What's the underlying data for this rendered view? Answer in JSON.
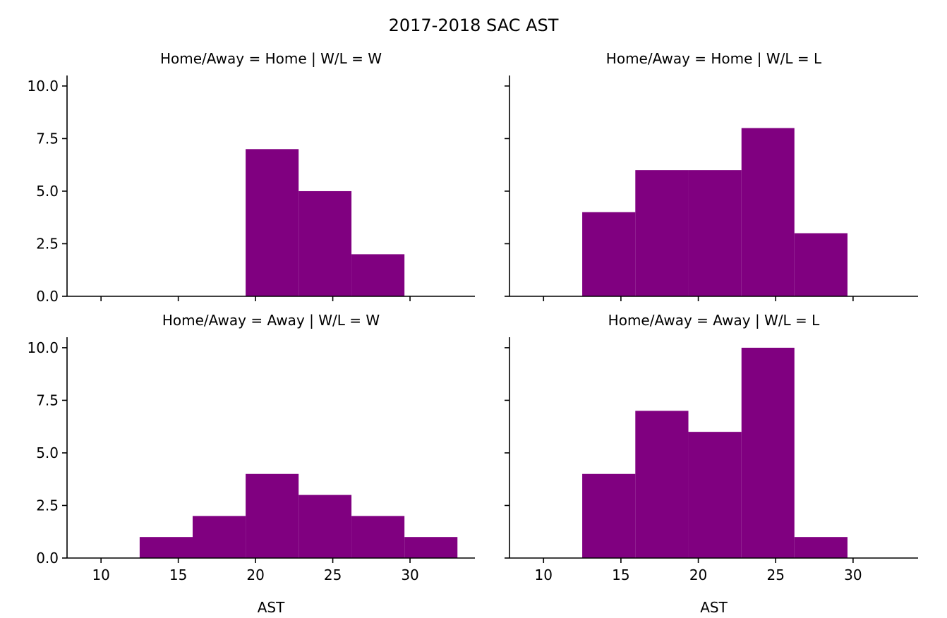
{
  "figure": {
    "title": "2017-2018 SAC AST",
    "bar_color": "#800080"
  },
  "chart_data": [
    {
      "type": "bar",
      "title": "Home/Away = Home | W/L = W",
      "xlabel": "",
      "ylabel": "",
      "xlim": [
        7.8,
        34.2
      ],
      "ylim": [
        0,
        10.5
      ],
      "xticks": [
        "10",
        "15",
        "20",
        "25",
        "30"
      ],
      "yticks": [
        "0.0",
        "2.5",
        "5.0",
        "7.5",
        "10.0"
      ],
      "bins": [
        {
          "x0": 12.5,
          "x1": 15.93,
          "value": 0
        },
        {
          "x0": 15.93,
          "x1": 19.36,
          "value": 0
        },
        {
          "x0": 19.36,
          "x1": 22.79,
          "value": 7
        },
        {
          "x0": 22.79,
          "x1": 26.21,
          "value": 5
        },
        {
          "x0": 26.21,
          "x1": 29.64,
          "value": 2
        },
        {
          "x0": 29.64,
          "x1": 33.07,
          "value": 0
        }
      ]
    },
    {
      "type": "bar",
      "title": "Home/Away = Home | W/L = L",
      "xlabel": "",
      "ylabel": "",
      "xlim": [
        7.8,
        34.2
      ],
      "ylim": [
        0,
        10.5
      ],
      "xticks": [
        "10",
        "15",
        "20",
        "25",
        "30"
      ],
      "yticks": [
        "0.0",
        "2.5",
        "5.0",
        "7.5",
        "10.0"
      ],
      "bins": [
        {
          "x0": 12.5,
          "x1": 15.93,
          "value": 4
        },
        {
          "x0": 15.93,
          "x1": 19.36,
          "value": 6
        },
        {
          "x0": 19.36,
          "x1": 22.79,
          "value": 6
        },
        {
          "x0": 22.79,
          "x1": 26.21,
          "value": 8
        },
        {
          "x0": 26.21,
          "x1": 29.64,
          "value": 3
        },
        {
          "x0": 29.64,
          "x1": 33.07,
          "value": 0
        }
      ]
    },
    {
      "type": "bar",
      "title": "Home/Away = Away | W/L = W",
      "xlabel": "AST",
      "ylabel": "",
      "xlim": [
        7.8,
        34.2
      ],
      "ylim": [
        0,
        10.5
      ],
      "xticks": [
        "10",
        "15",
        "20",
        "25",
        "30"
      ],
      "yticks": [
        "0.0",
        "2.5",
        "5.0",
        "7.5",
        "10.0"
      ],
      "bins": [
        {
          "x0": 12.5,
          "x1": 15.93,
          "value": 1
        },
        {
          "x0": 15.93,
          "x1": 19.36,
          "value": 2
        },
        {
          "x0": 19.36,
          "x1": 22.79,
          "value": 4
        },
        {
          "x0": 22.79,
          "x1": 26.21,
          "value": 3
        },
        {
          "x0": 26.21,
          "x1": 29.64,
          "value": 2
        },
        {
          "x0": 29.64,
          "x1": 33.07,
          "value": 1
        }
      ]
    },
    {
      "type": "bar",
      "title": "Home/Away = Away | W/L = L",
      "xlabel": "AST",
      "ylabel": "",
      "xlim": [
        7.8,
        34.2
      ],
      "ylim": [
        0,
        10.5
      ],
      "xticks": [
        "10",
        "15",
        "20",
        "25",
        "30"
      ],
      "yticks": [
        "0.0",
        "2.5",
        "5.0",
        "7.5",
        "10.0"
      ],
      "bins": [
        {
          "x0": 12.5,
          "x1": 15.93,
          "value": 4
        },
        {
          "x0": 15.93,
          "x1": 19.36,
          "value": 7
        },
        {
          "x0": 19.36,
          "x1": 22.79,
          "value": 6
        },
        {
          "x0": 22.79,
          "x1": 26.21,
          "value": 10
        },
        {
          "x0": 26.21,
          "x1": 29.64,
          "value": 1
        },
        {
          "x0": 29.64,
          "x1": 33.07,
          "value": 0
        }
      ]
    }
  ]
}
